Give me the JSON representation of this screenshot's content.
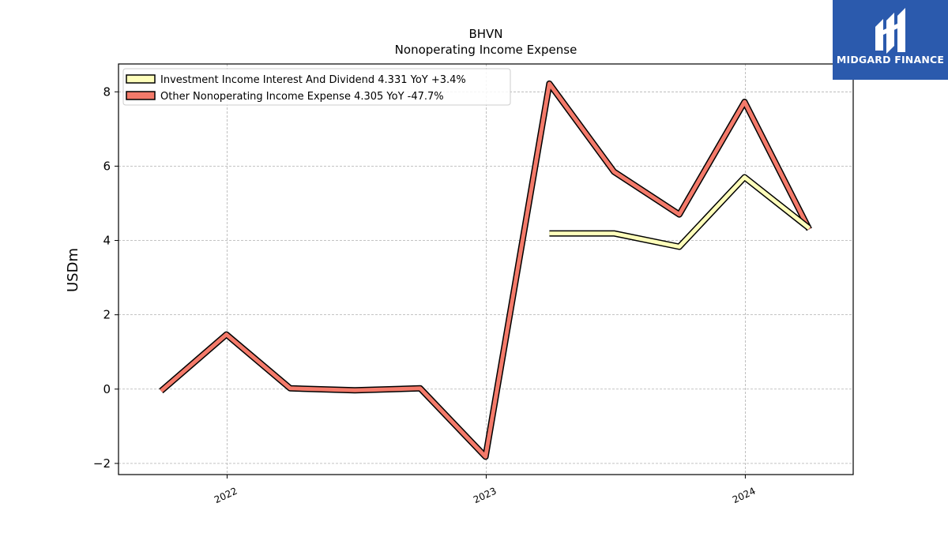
{
  "brand": {
    "name": "MIDGARD FINANCE",
    "color": "#2b5aad"
  },
  "chart_data": {
    "type": "line",
    "title": "BHVN",
    "subtitle": "Nonoperating Income Expense",
    "ylabel": "USDm",
    "xlabel": "",
    "ylim": [
      -2.3,
      8.75
    ],
    "xlim": [
      "2021-08-01",
      "2024-06-01"
    ],
    "yticks": [
      -2,
      0,
      2,
      4,
      6,
      8
    ],
    "ytick_labels": [
      "−2",
      "0",
      "2",
      "4",
      "6",
      "8"
    ],
    "xticks": [
      "2022-01-01",
      "2023-01-01",
      "2024-01-01"
    ],
    "xtick_labels": [
      "2022",
      "2023",
      "2024"
    ],
    "grid": true,
    "legend_position": "top-left",
    "series": [
      {
        "name": "Investment Income Interest And Dividend",
        "legend_label": "Investment Income Interest And Dividend  4.331 YoY +3.4%",
        "color": "#ffffbb",
        "x": [
          "2023-03-31",
          "2023-06-30",
          "2023-09-30",
          "2023-12-31",
          "2024-03-31"
        ],
        "values": [
          4.19,
          4.19,
          3.83,
          5.7,
          4.33
        ]
      },
      {
        "name": "Other Nonoperating Income Expense",
        "legend_label": "Other Nonoperating Income Expense  4.305 YoY -47.7%",
        "color": "#f47a6a",
        "x": [
          "2021-09-30",
          "2021-12-31",
          "2022-03-31",
          "2022-06-30",
          "2022-09-30",
          "2022-12-31",
          "2023-03-31",
          "2023-06-30",
          "2023-09-30",
          "2023-12-31",
          "2024-03-31"
        ],
        "values": [
          -0.05,
          1.47,
          0.02,
          -0.03,
          0.02,
          -1.82,
          8.22,
          5.85,
          4.7,
          7.73,
          4.3
        ]
      }
    ]
  }
}
